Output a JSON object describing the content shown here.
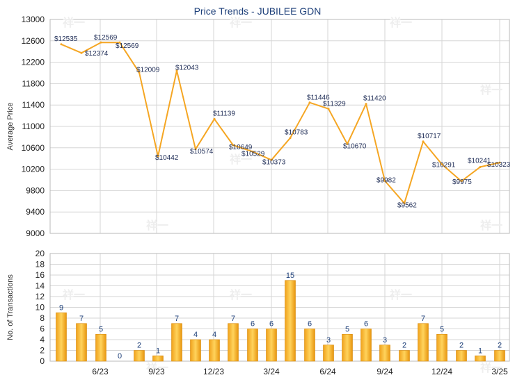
{
  "chart_data": [
    {
      "type": "line",
      "title": "Price Trends - JUBILEE GDN",
      "ylabel": "Average Price",
      "ylim": [
        9000,
        13000
      ],
      "yticks": [
        9000,
        9400,
        9800,
        10200,
        10600,
        11000,
        11400,
        11800,
        12200,
        12600,
        13000
      ],
      "x_tick_labels": [
        "6/23",
        "9/23",
        "12/23",
        "3/24",
        "6/24",
        "9/24",
        "12/24",
        "3/25"
      ],
      "line_color": "#f5a623",
      "series": [
        {
          "values": [
            12535,
            12374,
            12569,
            12569,
            12009,
            10442,
            12043,
            10574,
            11139,
            10649,
            10529,
            10373,
            10783,
            11446,
            11329,
            10670,
            11420,
            9982,
            9562,
            10717,
            10291,
            9975,
            10241,
            10323
          ],
          "labels": [
            "$12535",
            "$12374",
            "$12569",
            "$12569",
            "$12009",
            "$10442",
            "$12043",
            "$10574",
            "$11139",
            "$10649",
            "$10529",
            "$10373",
            "$10783",
            "$11446",
            "$11329",
            "$10670",
            "$11420",
            "$9982",
            "$9562",
            "$10717",
            "$10291",
            "$9975",
            "$10241",
            "$10323"
          ]
        }
      ],
      "grid": true
    },
    {
      "type": "bar",
      "ylabel": "No. of Transactions",
      "ylim": [
        0,
        20
      ],
      "yticks": [
        0,
        2,
        4,
        6,
        8,
        10,
        12,
        14,
        16,
        18,
        20
      ],
      "x_tick_labels": [
        "6/23",
        "9/23",
        "12/23",
        "3/24",
        "6/24",
        "9/24",
        "12/24",
        "3/25"
      ],
      "bar_color": "#f5a623",
      "values": [
        9,
        7,
        5,
        0,
        2,
        1,
        7,
        4,
        4,
        7,
        6,
        6,
        15,
        6,
        3,
        5,
        6,
        3,
        2,
        7,
        5,
        2,
        1,
        2
      ],
      "grid": true
    }
  ]
}
